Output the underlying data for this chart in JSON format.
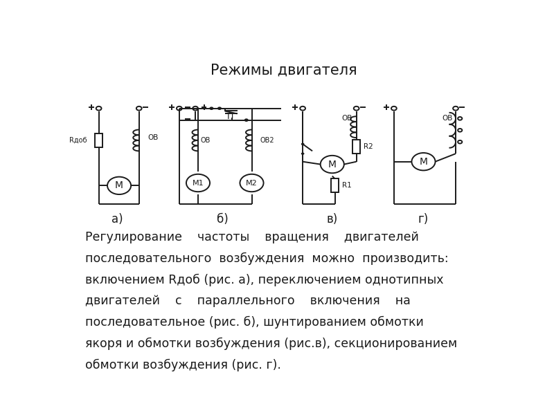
{
  "title": "Режимы двигателя",
  "title_fontsize": 15,
  "background_color": "#ffffff",
  "line_color": "#1a1a1a",
  "text_color": "#1a1a1a",
  "label_a": "а)",
  "label_b": "б)",
  "label_v": "в)",
  "label_g": "г)",
  "body_lines": [
    "Регулирование    частоты    вращения    двигателей",
    "последовательного  возбуждения  можно  производить:",
    "включением Rдоб (рис. а), переключением однотипных",
    "двигателей    с    параллельного    включения    на",
    "последовательное (рис. б), шунтированием обмотки",
    "якоря и обмотки возбуждения (рис.в), секционированием",
    "обмотки возбуждения (рис. г)."
  ],
  "body_fontsize": 12.5,
  "figsize": [
    8.0,
    6.0
  ],
  "dpi": 100
}
